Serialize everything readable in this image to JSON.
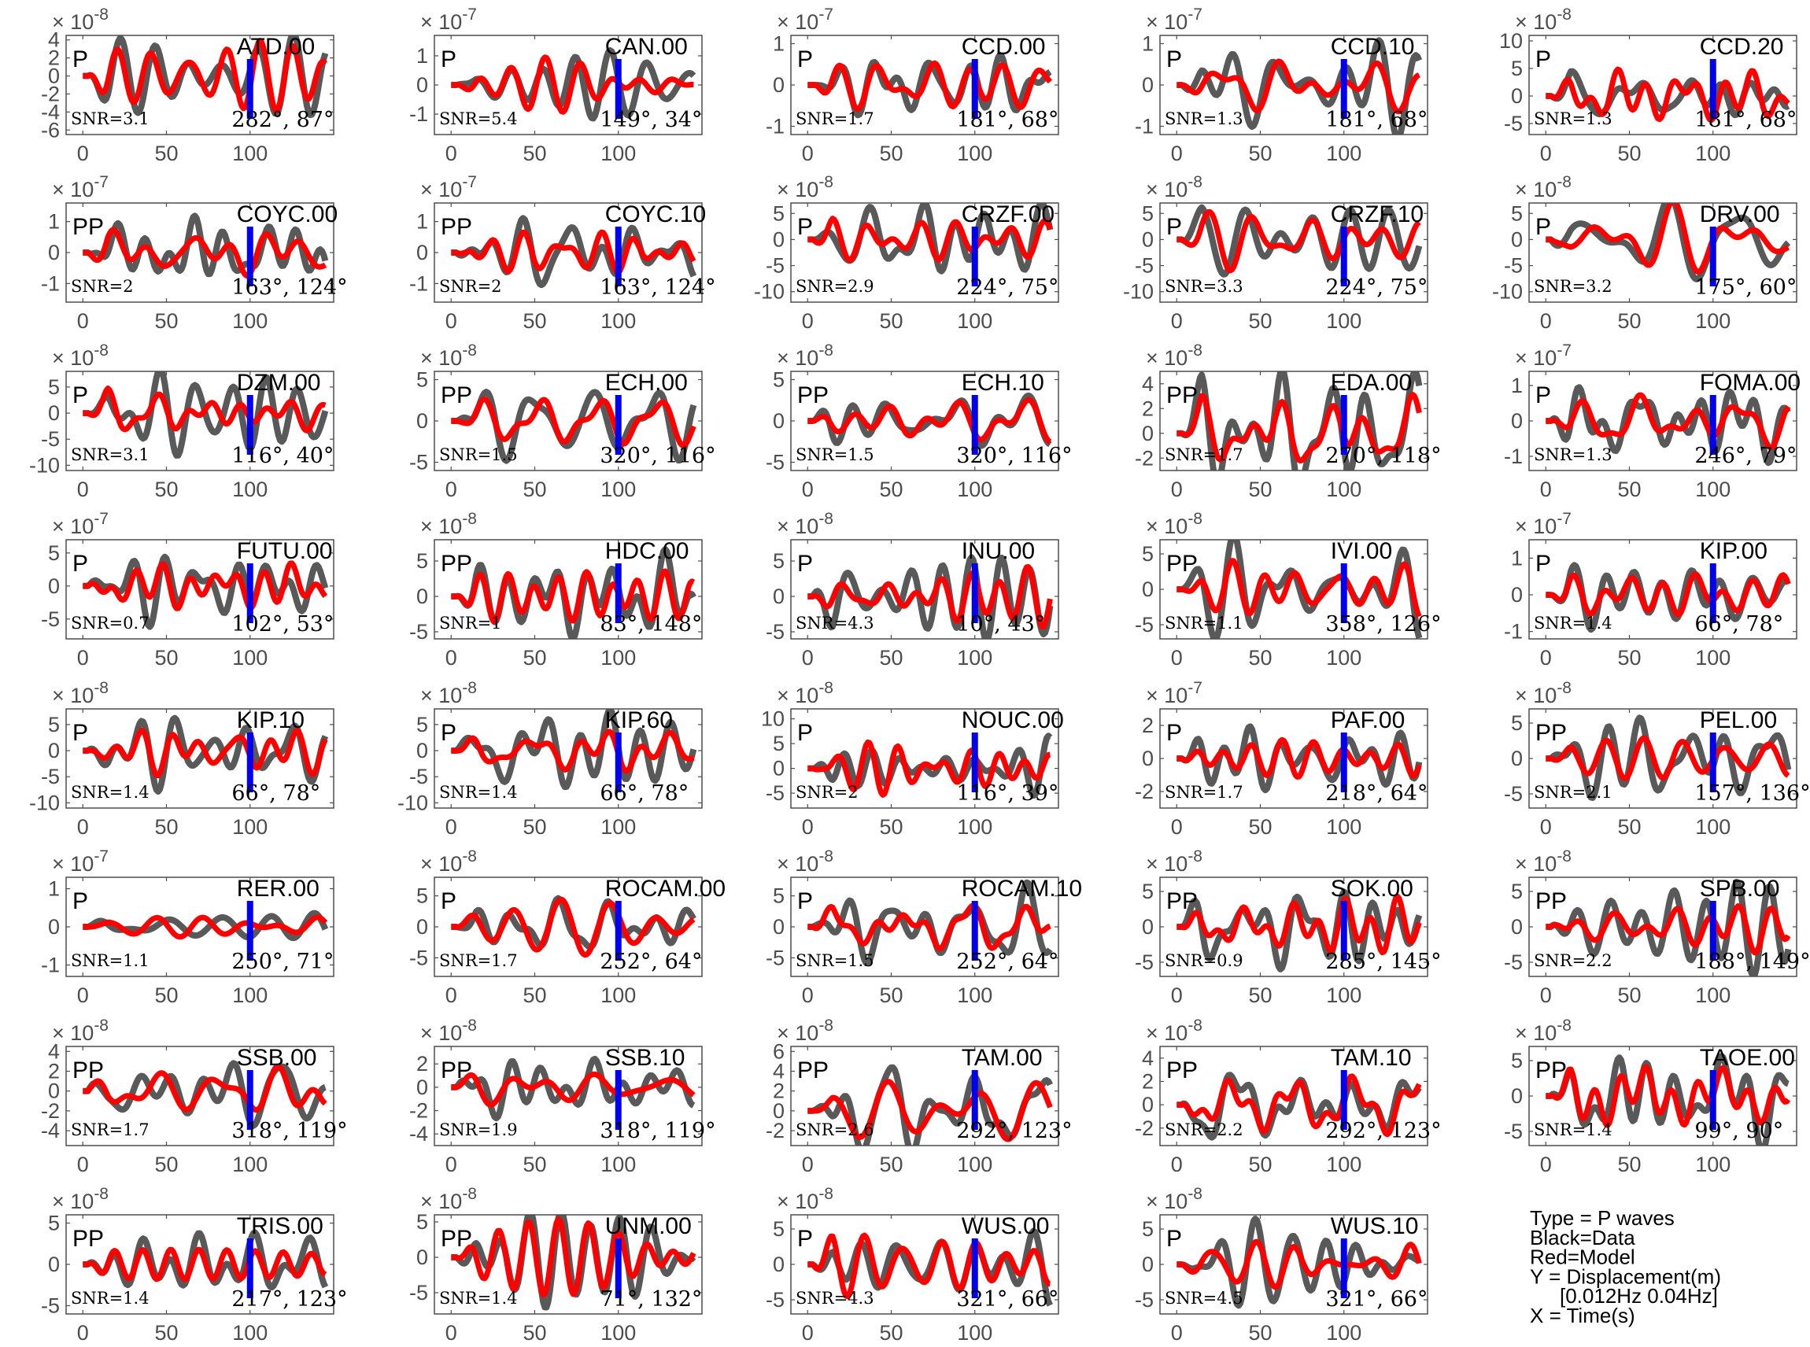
{
  "chart_data": {
    "type": "line",
    "layout": "grid",
    "grid": {
      "rows": 8,
      "cols": 5
    },
    "x": {
      "ticks": [
        0,
        50,
        100
      ],
      "xlim": [
        -10,
        150
      ]
    },
    "colors": {
      "data": "#595959",
      "model": "#ff0000",
      "marker": "#0000ee",
      "axis": "#4d4d4d"
    },
    "legend": {
      "position": "bottom-right",
      "lines": [
        {
          "text": "Type = P waves",
          "indent": 0
        },
        {
          "text": "Black=Data",
          "indent": 0
        },
        {
          "text": "Red=Model",
          "indent": 0
        },
        {
          "text": "Y = Displacement(m)",
          "indent": 0
        },
        {
          "text": "[0.012Hz 0.04Hz]",
          "indent": 1
        },
        {
          "text": "X = Time(s)",
          "indent": 0
        }
      ]
    },
    "panels": [
      {
        "station": "ATD.00",
        "wave": "P",
        "snr": "SNR=3.1",
        "angles": "282°, 87°",
        "exp": "-8",
        "yticks": [
          4,
          2,
          0,
          -2,
          -4,
          -6
        ],
        "ylim": [
          -6.5,
          4.5
        ],
        "amp": 5.5,
        "seed": 1
      },
      {
        "station": "CAN.00",
        "wave": "P",
        "snr": "SNR=5.4",
        "angles": "149°, 34°",
        "exp": "-7",
        "yticks": [
          1,
          0,
          -1
        ],
        "ylim": [
          -1.7,
          1.7
        ],
        "amp": 1.3,
        "seed": 2
      },
      {
        "station": "CCD.00",
        "wave": "P",
        "snr": "SNR=1.7",
        "angles": "181°, 68°",
        "exp": "-7",
        "yticks": [
          1,
          0,
          -1
        ],
        "ylim": [
          -1.2,
          1.2
        ],
        "amp": 0.8,
        "seed": 3
      },
      {
        "station": "CCD.10",
        "wave": "P",
        "snr": "SNR=1.3",
        "angles": "181°, 68°",
        "exp": "-7",
        "yticks": [
          1,
          0,
          -1
        ],
        "ylim": [
          -1.2,
          1.2
        ],
        "amp": 0.8,
        "seed": 4
      },
      {
        "station": "CCD.20",
        "wave": "P",
        "snr": "SNR=1.3",
        "angles": "181°, 68°",
        "exp": "-8",
        "yticks": [
          10,
          5,
          0,
          -5
        ],
        "ylim": [
          -7,
          11
        ],
        "amp": 7,
        "seed": 5
      },
      {
        "station": "COYC.00",
        "wave": "PP",
        "snr": "SNR=2",
        "angles": "163°, 124°",
        "exp": "-7",
        "yticks": [
          1,
          0,
          -1
        ],
        "ylim": [
          -1.6,
          1.6
        ],
        "amp": 1.1,
        "seed": 6
      },
      {
        "station": "COYC.10",
        "wave": "PP",
        "snr": "SNR=2",
        "angles": "163°, 124°",
        "exp": "-7",
        "yticks": [
          1,
          0,
          -1
        ],
        "ylim": [
          -1.6,
          1.6
        ],
        "amp": 1.1,
        "seed": 7
      },
      {
        "station": "CRZF.00",
        "wave": "P",
        "snr": "SNR=2.9",
        "angles": "224°, 75°",
        "exp": "-8",
        "yticks": [
          5,
          0,
          -5,
          -10
        ],
        "ylim": [
          -12,
          7
        ],
        "amp": 8,
        "seed": 8
      },
      {
        "station": "CRZF.10",
        "wave": "P",
        "snr": "SNR=3.3",
        "angles": "224°, 75°",
        "exp": "-8",
        "yticks": [
          5,
          0,
          -5,
          -10
        ],
        "ylim": [
          -12,
          7
        ],
        "amp": 8,
        "seed": 9
      },
      {
        "station": "DRV.00",
        "wave": "P",
        "snr": "SNR=3.2",
        "angles": "175°, 60°",
        "exp": "-8",
        "yticks": [
          5,
          0,
          -5,
          -10
        ],
        "ylim": [
          -12,
          7
        ],
        "amp": 8,
        "seed": 10
      },
      {
        "station": "DZM.00",
        "wave": "P",
        "snr": "SNR=3.1",
        "angles": "116°, 40°",
        "exp": "-8",
        "yticks": [
          5,
          0,
          -5,
          -10
        ],
        "ylim": [
          -11,
          8
        ],
        "amp": 8,
        "seed": 11
      },
      {
        "station": "ECH.00",
        "wave": "PP",
        "snr": "SNR=1.5",
        "angles": "320°, 116°",
        "exp": "-8",
        "yticks": [
          5,
          0,
          -5
        ],
        "ylim": [
          -6,
          6
        ],
        "amp": 4,
        "seed": 12
      },
      {
        "station": "ECH.10",
        "wave": "PP",
        "snr": "SNR=1.5",
        "angles": "320°, 116°",
        "exp": "-8",
        "yticks": [
          5,
          0,
          -5
        ],
        "ylim": [
          -6,
          6
        ],
        "amp": 4,
        "seed": 13
      },
      {
        "station": "EDA.00",
        "wave": "PP",
        "snr": "SNR=1.7",
        "angles": "270°, 118°",
        "exp": "-8",
        "yticks": [
          4,
          2,
          0,
          -2
        ],
        "ylim": [
          -3,
          5
        ],
        "amp": 3.5,
        "seed": 14
      },
      {
        "station": "FOMA.00",
        "wave": "P",
        "snr": "SNR=1.3",
        "angles": "246°, 79°",
        "exp": "-7",
        "yticks": [
          1,
          0,
          -1
        ],
        "ylim": [
          -1.4,
          1.4
        ],
        "amp": 0.9,
        "seed": 15
      },
      {
        "station": "FUTU.00",
        "wave": "P",
        "snr": "SNR=0.7",
        "angles": "102°, 53°",
        "exp": "-7",
        "yticks": [
          5,
          0,
          -5
        ],
        "ylim": [
          -8,
          7
        ],
        "amp": 5,
        "seed": 16
      },
      {
        "station": "HDC.00",
        "wave": "PP",
        "snr": "SNR=1",
        "angles": "83°, 148°",
        "exp": "-8",
        "yticks": [
          5,
          0,
          -5
        ],
        "ylim": [
          -6,
          8
        ],
        "amp": 5,
        "seed": 17
      },
      {
        "station": "INU.00",
        "wave": "P",
        "snr": "SNR=4.3",
        "angles": "10°, 43°",
        "exp": "-8",
        "yticks": [
          5,
          0,
          -5
        ],
        "ylim": [
          -6,
          8
        ],
        "amp": 5,
        "seed": 18
      },
      {
        "station": "IVI.00",
        "wave": "PP",
        "snr": "SNR=1.1",
        "angles": "358°, 126°",
        "exp": "-8",
        "yticks": [
          5,
          0,
          -5
        ],
        "ylim": [
          -7,
          7
        ],
        "amp": 5,
        "seed": 19
      },
      {
        "station": "KIP.00",
        "wave": "P",
        "snr": "SNR=1.4",
        "angles": "66°, 78°",
        "exp": "-7",
        "yticks": [
          1,
          0,
          -1
        ],
        "ylim": [
          -1.2,
          1.5
        ],
        "amp": 0.9,
        "seed": 20
      },
      {
        "station": "KIP.10",
        "wave": "P",
        "snr": "SNR=1.4",
        "angles": "66°, 78°",
        "exp": "-8",
        "yticks": [
          5,
          0,
          -5,
          -10
        ],
        "ylim": [
          -11,
          8
        ],
        "amp": 7,
        "seed": 21
      },
      {
        "station": "KIP.60",
        "wave": "P",
        "snr": "SNR=1.4",
        "angles": "66°, 78°",
        "exp": "-8",
        "yticks": [
          5,
          0,
          -5,
          -10
        ],
        "ylim": [
          -11,
          8
        ],
        "amp": 7,
        "seed": 22
      },
      {
        "station": "NOUC.00",
        "wave": "P",
        "snr": "SNR=2",
        "angles": "116°, 39°",
        "exp": "-8",
        "yticks": [
          10,
          5,
          0,
          -5
        ],
        "ylim": [
          -8,
          12
        ],
        "amp": 7,
        "seed": 23
      },
      {
        "station": "PAF.00",
        "wave": "P",
        "snr": "SNR=1.7",
        "angles": "218°, 64°",
        "exp": "-7",
        "yticks": [
          2,
          0,
          -2
        ],
        "ylim": [
          -3,
          3
        ],
        "amp": 2,
        "seed": 24
      },
      {
        "station": "PEL.00",
        "wave": "PP",
        "snr": "SNR=2.1",
        "angles": "157°, 136°",
        "exp": "-8",
        "yticks": [
          5,
          0,
          -5
        ],
        "ylim": [
          -7,
          7
        ],
        "amp": 5,
        "seed": 25
      },
      {
        "station": "RER.00",
        "wave": "P",
        "snr": "SNR=1.1",
        "angles": "250°, 71°",
        "exp": "-7",
        "yticks": [
          1,
          0,
          -1
        ],
        "ylim": [
          -1.3,
          1.3
        ],
        "amp": 0.9,
        "seed": 26
      },
      {
        "station": "ROCAM.00",
        "wave": "P",
        "snr": "SNR=1.7",
        "angles": "252°, 64°",
        "exp": "-8",
        "yticks": [
          5,
          0,
          -5
        ],
        "ylim": [
          -8,
          8
        ],
        "amp": 6,
        "seed": 27
      },
      {
        "station": "ROCAM.10",
        "wave": "P",
        "snr": "SNR=1.5",
        "angles": "252°, 64°",
        "exp": "-8",
        "yticks": [
          5,
          0,
          -5
        ],
        "ylim": [
          -8,
          8
        ],
        "amp": 6,
        "seed": 28
      },
      {
        "station": "SOK.00",
        "wave": "PP",
        "snr": "SNR=0.9",
        "angles": "285°, 145°",
        "exp": "-8",
        "yticks": [
          5,
          0,
          -5
        ],
        "ylim": [
          -7,
          7
        ],
        "amp": 5,
        "seed": 29
      },
      {
        "station": "SPB.00",
        "wave": "PP",
        "snr": "SNR=2.2",
        "angles": "188°, 149°",
        "exp": "-8",
        "yticks": [
          5,
          0,
          -5
        ],
        "ylim": [
          -7,
          7
        ],
        "amp": 5,
        "seed": 30
      },
      {
        "station": "SSB.00",
        "wave": "PP",
        "snr": "SNR=1.7",
        "angles": "318°, 119°",
        "exp": "-8",
        "yticks": [
          4,
          2,
          0,
          -2,
          -4
        ],
        "ylim": [
          -5.5,
          4.5
        ],
        "amp": 4,
        "seed": 31
      },
      {
        "station": "SSB.10",
        "wave": "PP",
        "snr": "SNR=1.9",
        "angles": "318°, 119°",
        "exp": "-8",
        "yticks": [
          2,
          0,
          -2,
          -4
        ],
        "ylim": [
          -5,
          3.5
        ],
        "amp": 3,
        "seed": 32
      },
      {
        "station": "TAM.00",
        "wave": "PP",
        "snr": "SNR=2.6",
        "angles": "292°, 123°",
        "exp": "-8",
        "yticks": [
          6,
          4,
          2,
          0,
          -2
        ],
        "ylim": [
          -3.5,
          6.5
        ],
        "amp": 4,
        "seed": 33
      },
      {
        "station": "TAM.10",
        "wave": "PP",
        "snr": "SNR=2.2",
        "angles": "292°, 123°",
        "exp": "-8",
        "yticks": [
          4,
          2,
          0,
          -2
        ],
        "ylim": [
          -3.5,
          5
        ],
        "amp": 3.5,
        "seed": 34
      },
      {
        "station": "TAOE.00",
        "wave": "PP",
        "snr": "SNR=1.4",
        "angles": "99°, 90°",
        "exp": "-8",
        "yticks": [
          5,
          0,
          -5
        ],
        "ylim": [
          -7,
          7
        ],
        "amp": 5,
        "seed": 35
      },
      {
        "station": "TRIS.00",
        "wave": "PP",
        "snr": "SNR=1.4",
        "angles": "217°, 123°",
        "exp": "-8",
        "yticks": [
          5,
          0,
          -5
        ],
        "ylim": [
          -6,
          6
        ],
        "amp": 4.5,
        "seed": 36
      },
      {
        "station": "UNM.00",
        "wave": "PP",
        "snr": "SNR=1.4",
        "angles": "71°, 132°",
        "exp": "-8",
        "yticks": [
          5,
          0,
          -5
        ],
        "ylim": [
          -8,
          6
        ],
        "amp": 5,
        "seed": 37
      },
      {
        "station": "WUS.00",
        "wave": "P",
        "snr": "SNR=4.3",
        "angles": "321°, 66°",
        "exp": "-8",
        "yticks": [
          5,
          0,
          -5
        ],
        "ylim": [
          -7,
          7
        ],
        "amp": 5,
        "seed": 38
      },
      {
        "station": "WUS.10",
        "wave": "P",
        "snr": "SNR=4.5",
        "angles": "321°, 66°",
        "exp": "-8",
        "yticks": [
          5,
          0,
          -5
        ],
        "ylim": [
          -7,
          7
        ],
        "amp": 5,
        "seed": 39
      }
    ]
  }
}
